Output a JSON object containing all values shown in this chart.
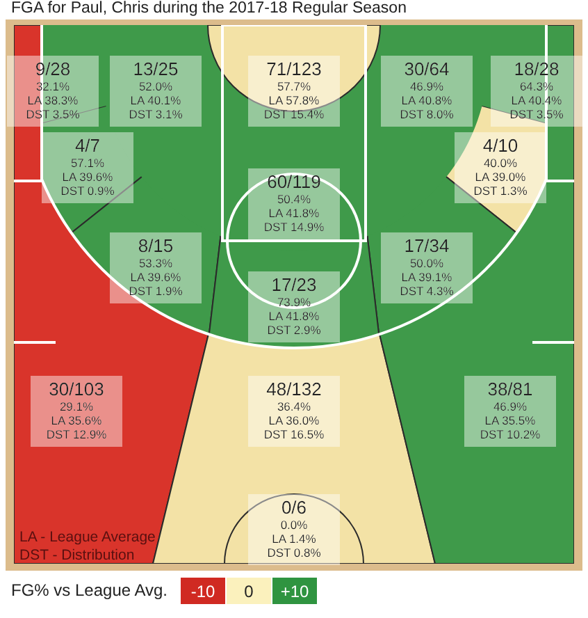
{
  "chart_data": {
    "type": "other",
    "title": "FGA for Paul, Chris during the 2017-18 Regular Season",
    "categories": [
      "9/28",
      "13/25",
      "71/123",
      "30/64",
      "18/28",
      "4/7",
      "4/10",
      "60/119",
      "8/15",
      "17/34",
      "17/23",
      "30/103",
      "48/132",
      "38/81",
      "0/6"
    ],
    "colors": [
      "#d9342b",
      "#3f9a4a",
      "#f3e2a6",
      "#3f9a4a",
      "#3f9a4a",
      "#3f9a4a",
      "#f3e2a6",
      "#3f9a4a",
      "#3f9a4a",
      "#3f9a4a",
      "#3f9a4a",
      "#d9342b",
      "#f3e2a6",
      "#3f9a4a",
      "#f3e2a6"
    ],
    "series": [
      {
        "color": "#222222",
        "values": [
          32.1,
          52.0,
          57.7,
          46.9,
          64.3,
          57.1,
          40.0,
          50.4,
          53.3,
          50.0,
          73.9,
          29.1,
          36.4,
          46.9,
          0.0
        ],
        "value_labels": [
          "32.1%",
          "52.0%",
          "57.7%",
          "46.9%",
          "64.3%",
          "57.1%",
          "40.0%",
          "50.4%",
          "53.3%",
          "50.0%",
          "73.9%",
          "29.1%",
          "36.4%",
          "46.9%",
          "0.0%"
        ]
      },
      {
        "color": "#222222",
        "values": [
          38.3,
          40.1,
          57.8,
          40.8,
          40.4,
          39.6,
          39.0,
          41.8,
          39.6,
          39.1,
          41.8,
          35.6,
          36.0,
          35.5,
          1.4
        ],
        "value_labels": [
          "LA 38.3%",
          "LA 40.1%",
          "LA 57.8%",
          "LA 40.8%",
          "LA 40.4%",
          "LA 39.6%",
          "LA 39.0%",
          "LA 41.8%",
          "LA 39.6%",
          "LA 39.1%",
          "LA 41.8%",
          "LA 35.6%",
          "LA 36.0%",
          "LA 35.5%",
          "LA 1.4%"
        ]
      },
      {
        "color": "#222222",
        "values": [
          3.5,
          3.1,
          15.4,
          8.0,
          3.5,
          0.9,
          1.3,
          14.9,
          1.9,
          4.3,
          2.9,
          12.9,
          16.5,
          10.2,
          0.8
        ],
        "value_labels": [
          "DST 3.5%",
          "DST 3.1%",
          "DST 15.4%",
          "DST 8.0%",
          "DST 3.5%",
          "DST 0.9%",
          "DST 1.3%",
          "DST 14.9%",
          "DST 1.9%",
          "DST 4.3%",
          "DST 2.9%",
          "DST 12.9%",
          "DST 16.5%",
          "DST 10.2%",
          "DST 0.8%"
        ]
      }
    ],
    "annotations": [
      "LA - League Average",
      "DST - Distribution",
      "FG% vs League Avg.",
      "-10",
      "0",
      "+10"
    ]
  }
}
